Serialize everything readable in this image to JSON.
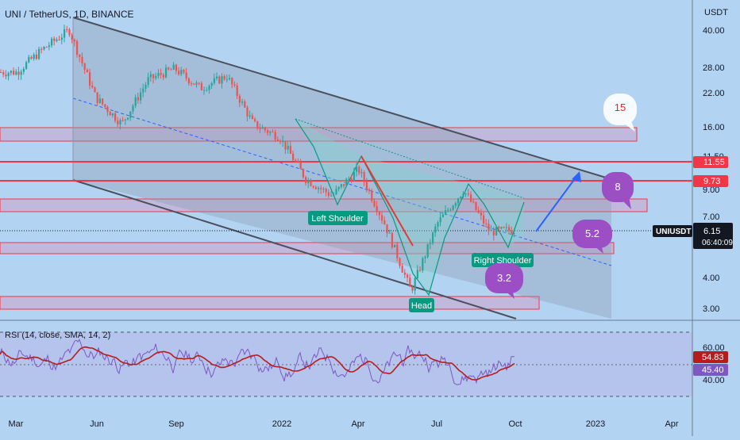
{
  "header": {
    "title": "UNI / TetherUS, 1D, BINANCE"
  },
  "price_axis": {
    "unit": "USDT",
    "ticks": [
      "40.00",
      "28.00",
      "22.00",
      "16.00",
      "11.50",
      "9.00",
      "7.00",
      "4.00",
      "3.00"
    ],
    "badges": [
      {
        "label": "11.55",
        "color": "#f23645"
      },
      {
        "label": "9.73",
        "color": "#f23645"
      },
      {
        "label": "6.15",
        "color": "#131722"
      }
    ],
    "symbol": "UNIUSDT",
    "countdown": "06:40:09"
  },
  "rsi_axis": {
    "ticks": [
      "60.00",
      "40.00"
    ],
    "badges": [
      {
        "label": "54.83",
        "color": "#b71c1c"
      },
      {
        "label": "45.40",
        "color": "#7e57c2"
      }
    ]
  },
  "time_axis": {
    "ticks": [
      "Mar",
      "Jun",
      "Sep",
      "2022",
      "Apr",
      "Jul",
      "Oct",
      "2023",
      "Apr"
    ]
  },
  "rsi_pane": {
    "label": "RSI (14, close, SMA, 14, 2)"
  },
  "annotations": {
    "left_shoulder": "Left Shoulder",
    "head": "Head",
    "right_shoulder": "Right Shoulder"
  },
  "callouts": [
    "15",
    "8",
    "5.2",
    "3.2"
  ],
  "colors": {
    "background": "#b3d3f3",
    "up_candle": "#26a69a",
    "down_candle": "#ef5350",
    "resistance_line": "#f23645",
    "channel": "#4a4f5c",
    "label_green": "#089981",
    "callout_purple": "#9c4fc4",
    "rsi_line": "#7e57c2",
    "rsi_ma": "#b71c1c"
  },
  "chart_data": {
    "type": "candlestick",
    "title": "UNI / TetherUS, 1D, BINANCE",
    "y_scale": "log",
    "ylim": [
      2.6,
      52
    ],
    "x_range": [
      "2021-03",
      "2023-04"
    ],
    "approx_close_path": [
      {
        "date": "2021-03",
        "close": 28
      },
      {
        "date": "2021-04",
        "close": 35
      },
      {
        "date": "2021-05",
        "close": 42
      },
      {
        "date": "2021-06",
        "close": 22
      },
      {
        "date": "2021-07",
        "close": 17
      },
      {
        "date": "2021-08",
        "close": 26
      },
      {
        "date": "2021-09",
        "close": 29
      },
      {
        "date": "2021-10",
        "close": 24
      },
      {
        "date": "2021-11",
        "close": 27
      },
      {
        "date": "2021-12",
        "close": 17
      },
      {
        "date": "2022-01",
        "close": 15
      },
      {
        "date": "2022-02",
        "close": 10
      },
      {
        "date": "2022-03",
        "close": 8.5
      },
      {
        "date": "2022-04",
        "close": 11
      },
      {
        "date": "2022-05",
        "close": 6.5
      },
      {
        "date": "2022-06",
        "close": 3.4
      },
      {
        "date": "2022-07",
        "close": 6.5
      },
      {
        "date": "2022-08",
        "close": 9
      },
      {
        "date": "2022-09",
        "close": 6.0
      },
      {
        "date": "2022-10",
        "close": 6.15
      }
    ],
    "last_price": 6.15,
    "horizontal_levels": [
      11.55,
      9.73
    ],
    "zones": [
      [
        13.5,
        15.5
      ],
      [
        7.6,
        8.5
      ],
      [
        5.3,
        5.7
      ],
      [
        3.15,
        3.35
      ]
    ],
    "rsi": {
      "last": 54.83,
      "ma_last": 45.4,
      "levels": [
        70,
        50,
        30
      ]
    }
  }
}
